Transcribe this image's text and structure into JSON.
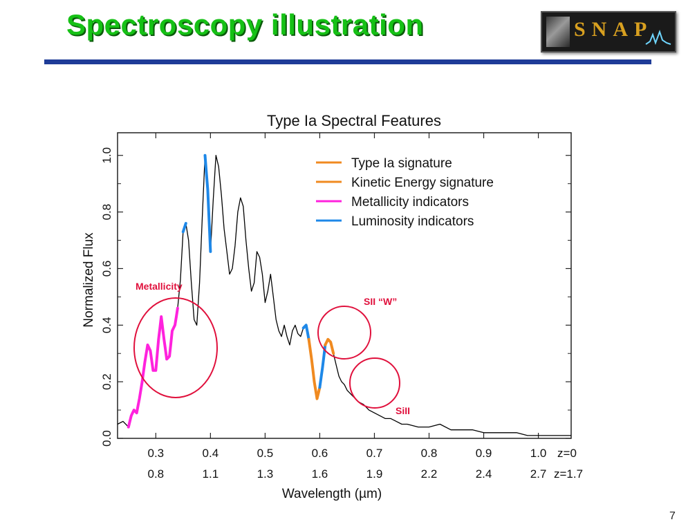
{
  "slide": {
    "title": "Spectroscopy illustration",
    "page_number": "7",
    "logo_text": "SNAP"
  },
  "colors": {
    "title_green": "#16c116",
    "rule_blue": "#1f3c98",
    "type_ia": "#f08a20",
    "kinetic": "#f08a20",
    "metallicity": "#ff22dd",
    "luminosity": "#1e88e8",
    "annotation_red": "#e0103c",
    "spectrum": "#000000"
  },
  "chart_data": {
    "type": "line",
    "title": "Type Ia Spectral Features",
    "xlabel": "Wavelength (µm)",
    "ylabel": "Normalized Flux",
    "xlim": [
      0.23,
      1.06
    ],
    "ylim": [
      0.0,
      1.08
    ],
    "yticks": [
      "0.0",
      "0.2",
      "0.4",
      "0.6",
      "0.8",
      "1.0"
    ],
    "xticks_top": [
      "0.3",
      "0.4",
      "0.5",
      "0.6",
      "0.7",
      "0.8",
      "0.9",
      "1.0",
      "z=0"
    ],
    "xticks_bottom": [
      "0.8",
      "1.1",
      "1.3",
      "1.6",
      "1.9",
      "2.2",
      "2.4",
      "2.7",
      "z=1.7"
    ],
    "legend": [
      {
        "name": "Type Ia signature",
        "color": "#f08a20"
      },
      {
        "name": "Kinetic Energy signature",
        "color": "#f08a20"
      },
      {
        "name": "Metallicity indicators",
        "color": "#ff22dd"
      },
      {
        "name": "Luminosity indicators",
        "color": "#1e88e8"
      }
    ],
    "legend_position": "top-right",
    "annotations": [
      {
        "text": "Metallicity"
      },
      {
        "text": "SII “W”"
      },
      {
        "text": "SiII"
      }
    ],
    "spectrum": {
      "x": [
        0.23,
        0.24,
        0.25,
        0.255,
        0.26,
        0.265,
        0.27,
        0.275,
        0.28,
        0.285,
        0.29,
        0.295,
        0.3,
        0.305,
        0.31,
        0.315,
        0.32,
        0.325,
        0.33,
        0.335,
        0.34,
        0.345,
        0.35,
        0.355,
        0.36,
        0.365,
        0.37,
        0.375,
        0.38,
        0.385,
        0.39,
        0.395,
        0.4,
        0.405,
        0.41,
        0.415,
        0.42,
        0.425,
        0.43,
        0.435,
        0.44,
        0.445,
        0.45,
        0.455,
        0.46,
        0.465,
        0.47,
        0.475,
        0.48,
        0.485,
        0.49,
        0.495,
        0.5,
        0.505,
        0.51,
        0.515,
        0.52,
        0.525,
        0.53,
        0.535,
        0.54,
        0.545,
        0.55,
        0.555,
        0.56,
        0.565,
        0.57,
        0.575,
        0.58,
        0.585,
        0.59,
        0.595,
        0.6,
        0.605,
        0.61,
        0.615,
        0.62,
        0.625,
        0.63,
        0.635,
        0.64,
        0.645,
        0.65,
        0.66,
        0.67,
        0.68,
        0.69,
        0.7,
        0.71,
        0.72,
        0.73,
        0.74,
        0.75,
        0.76,
        0.78,
        0.8,
        0.82,
        0.84,
        0.86,
        0.88,
        0.9,
        0.92,
        0.94,
        0.96,
        0.98,
        1.0,
        1.02,
        1.04,
        1.06
      ],
      "y": [
        0.05,
        0.06,
        0.04,
        0.08,
        0.1,
        0.09,
        0.14,
        0.2,
        0.27,
        0.33,
        0.31,
        0.24,
        0.24,
        0.35,
        0.43,
        0.35,
        0.28,
        0.29,
        0.38,
        0.4,
        0.46,
        0.56,
        0.73,
        0.76,
        0.7,
        0.55,
        0.42,
        0.4,
        0.55,
        0.78,
        1.0,
        0.88,
        0.66,
        0.84,
        1.0,
        0.96,
        0.86,
        0.74,
        0.66,
        0.58,
        0.6,
        0.68,
        0.8,
        0.85,
        0.82,
        0.7,
        0.6,
        0.52,
        0.55,
        0.66,
        0.64,
        0.58,
        0.48,
        0.52,
        0.58,
        0.5,
        0.42,
        0.38,
        0.36,
        0.4,
        0.36,
        0.33,
        0.38,
        0.4,
        0.37,
        0.36,
        0.39,
        0.4,
        0.35,
        0.28,
        0.2,
        0.14,
        0.18,
        0.25,
        0.33,
        0.35,
        0.34,
        0.3,
        0.26,
        0.22,
        0.2,
        0.19,
        0.17,
        0.15,
        0.13,
        0.12,
        0.1,
        0.09,
        0.08,
        0.07,
        0.07,
        0.06,
        0.05,
        0.05,
        0.04,
        0.04,
        0.05,
        0.03,
        0.03,
        0.03,
        0.02,
        0.02,
        0.02,
        0.02,
        0.01,
        0.01,
        0.01,
        0.01,
        0.01
      ]
    },
    "highlights": [
      {
        "feature": "metallicity",
        "color": "#ff22dd",
        "x_range": [
          0.25,
          0.34
        ]
      },
      {
        "feature": "luminosity",
        "color": "#1e88e8",
        "x_range": [
          0.35,
          0.356
        ]
      },
      {
        "feature": "luminosity",
        "color": "#1e88e8",
        "x_range": [
          0.39,
          0.4
        ]
      },
      {
        "feature": "luminosity",
        "color": "#1e88e8",
        "x_range": [
          0.57,
          0.58
        ]
      },
      {
        "feature": "type_ia",
        "color": "#f08a20",
        "x_range": [
          0.58,
          0.6
        ]
      },
      {
        "feature": "luminosity",
        "color": "#1e88e8",
        "x_range": [
          0.6,
          0.61
        ]
      },
      {
        "feature": "kinetic",
        "color": "#f08a20",
        "x_range": [
          0.61,
          0.625
        ]
      }
    ]
  }
}
